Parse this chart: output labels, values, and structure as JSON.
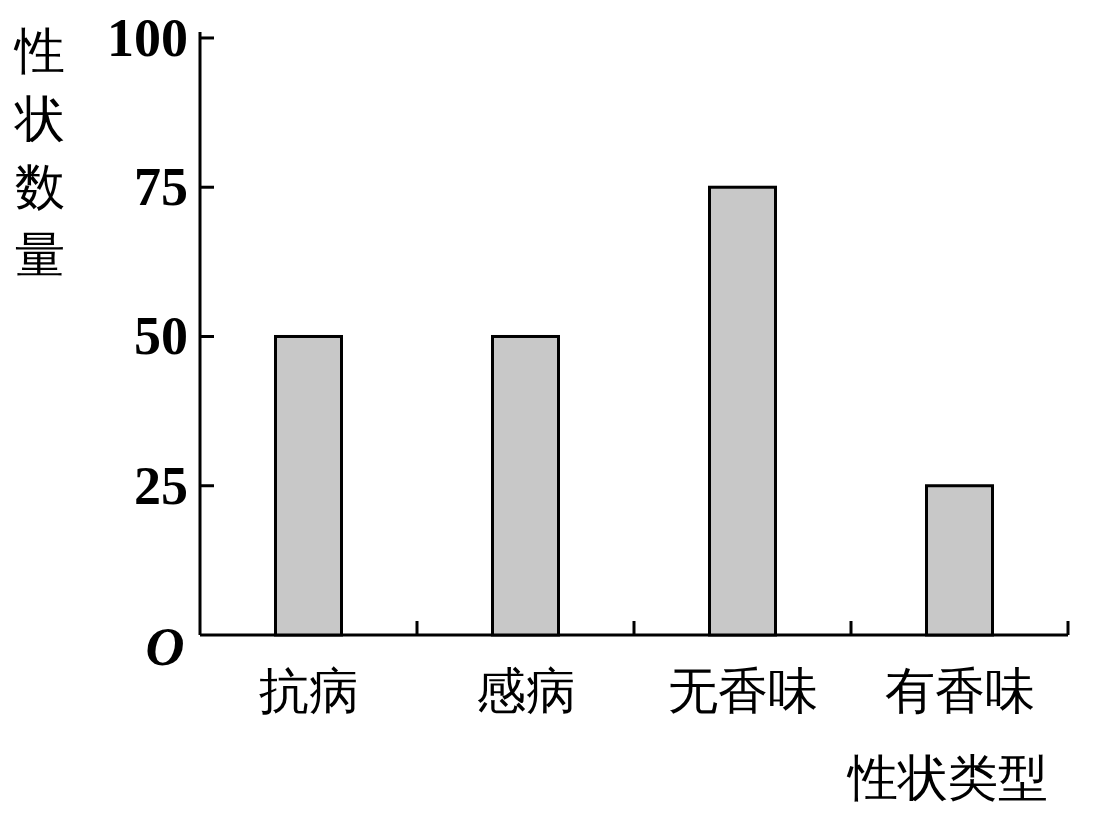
{
  "chart_data": {
    "type": "bar",
    "xlabel": "性状类型",
    "ylabel": "性状数量",
    "categories": [
      "抗病",
      "感病",
      "无香味",
      "有香味"
    ],
    "values": [
      50,
      50,
      75,
      25
    ],
    "color": "#c8c8c8",
    "ylim": [
      0,
      101
    ],
    "yticks": [
      {
        "value": 0,
        "label": "O"
      },
      25,
      50,
      75,
      100
    ]
  }
}
